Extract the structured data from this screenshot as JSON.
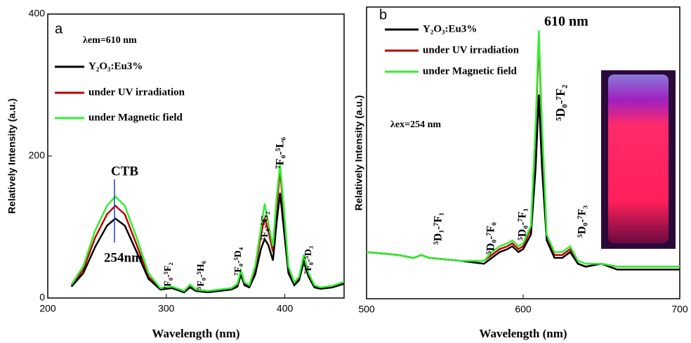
{
  "chart_data": [
    {
      "type": "line",
      "panel": "a",
      "xlabel": "Wavelength (nm)",
      "ylabel": "Relatively Intensity (a.u.)",
      "xlim": [
        200,
        450
      ],
      "ylim": [
        0,
        400
      ],
      "xticks": [
        200,
        300,
        400
      ],
      "yticks": [
        0,
        200,
        400
      ],
      "annotations": [
        "λem=610 nm",
        "CTB",
        "254nm",
        "⁷F₀-⁵F₂",
        "⁵F₀-⁵H₆",
        "⁷F₀-⁵D₄",
        "⁷F₀-⁵G₂",
        "⁷F₀-⁵L₆",
        "⁷F₀-⁵D₃"
      ],
      "x": [
        220,
        230,
        240,
        250,
        257,
        265,
        275,
        285,
        295,
        305,
        315,
        320,
        325,
        335,
        345,
        355,
        360,
        363,
        366,
        370,
        375,
        380,
        383,
        386,
        390,
        393,
        396,
        399,
        403,
        408,
        412,
        416,
        420,
        425,
        430,
        440,
        450
      ],
      "series": [
        {
          "name": "Y₂O₃:Eu3%",
          "color": "#000000",
          "values": [
            16,
            35,
            72,
            102,
            112,
            102,
            65,
            27,
            12,
            14,
            8,
            15,
            10,
            8,
            10,
            12,
            16,
            33,
            18,
            15,
            33,
            70,
            83,
            75,
            53,
            105,
            148,
            100,
            35,
            18,
            25,
            51,
            30,
            15,
            13,
            15,
            20
          ]
        },
        {
          "name": "under UV irradiation",
          "color": "#c00000",
          "values": [
            18,
            40,
            85,
            118,
            130,
            118,
            75,
            30,
            13,
            15,
            9,
            17,
            11,
            9,
            11,
            13,
            18,
            37,
            20,
            17,
            40,
            90,
            113,
            95,
            65,
            125,
            182,
            120,
            40,
            20,
            28,
            58,
            33,
            17,
            14,
            16,
            22
          ]
        },
        {
          "name": "under Magnetic field",
          "color": "#33ee33",
          "values": [
            19,
            45,
            95,
            130,
            143,
            130,
            85,
            35,
            14,
            16,
            10,
            19,
            12,
            10,
            12,
            14,
            20,
            39,
            22,
            18,
            45,
            100,
            133,
            105,
            73,
            140,
            189,
            130,
            45,
            22,
            30,
            61,
            35,
            18,
            15,
            17,
            23
          ]
        }
      ]
    },
    {
      "type": "line",
      "panel": "b",
      "xlabel": "Wavelength (nm)",
      "ylabel": "Relatively Intensity (a.u.)",
      "xlim": [
        500,
        700
      ],
      "ylim": [
        0,
        100
      ],
      "xticks": [
        500,
        600,
        700
      ],
      "annotations": [
        "610 nm",
        "λex=254 nm",
        "⁵D₁-⁷F₁",
        "⁵D₀-⁷F₀",
        "⁵D₀-⁷F₁",
        "⁵D₀-⁷F₂",
        "⁵D₀-⁷F₃"
      ],
      "x": [
        500,
        520,
        530,
        535,
        540,
        560,
        575,
        580,
        585,
        590,
        593,
        597,
        600,
        605,
        608,
        610,
        612,
        615,
        620,
        625,
        630,
        635,
        640,
        650,
        660,
        680,
        700
      ],
      "series": [
        {
          "name": "Y₂O₃:Eu3%",
          "color": "#000000",
          "values": [
            16,
            15,
            14,
            15,
            14,
            13,
            12,
            14,
            16,
            17,
            18,
            16,
            17,
            22,
            45,
            70,
            45,
            20,
            14,
            14,
            16,
            12,
            11,
            12,
            10,
            10,
            10
          ]
        },
        {
          "name": "under UV irradiation",
          "color": "#c00000",
          "values": [
            16,
            15,
            14,
            15,
            14,
            13,
            13,
            15,
            17,
            18,
            19,
            17,
            18,
            24,
            58,
            89,
            58,
            21,
            15,
            15,
            17,
            12,
            11,
            12,
            11,
            11,
            11
          ]
        },
        {
          "name": "under Magnetic field",
          "color": "#33ee33",
          "values": [
            16,
            15,
            14,
            15,
            14,
            13,
            13,
            16,
            18,
            19,
            20,
            18,
            19,
            25,
            60,
            92,
            60,
            22,
            16,
            16,
            18,
            13,
            12,
            12,
            11,
            11,
            11
          ]
        }
      ]
    }
  ]
}
